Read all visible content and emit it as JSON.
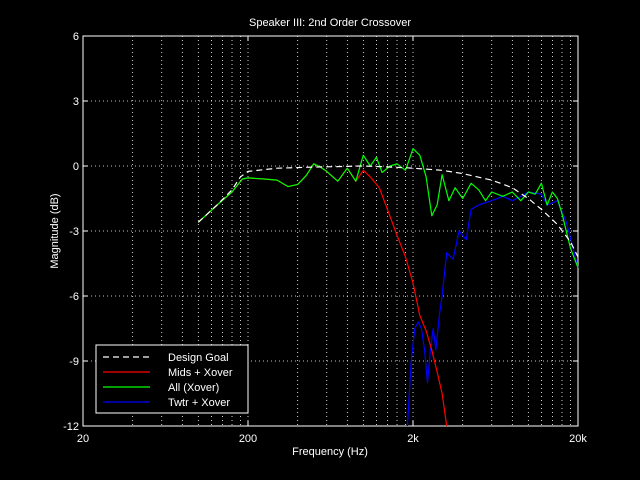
{
  "chart_data": {
    "type": "line",
    "title": "Speaker III: 2nd Order Crossover",
    "xlabel": "Frequency (Hz)",
    "ylabel": "Magnitude (dB)",
    "xscale": "log",
    "xlim": [
      20,
      20000
    ],
    "ylim": [
      -12,
      6
    ],
    "xticks": [
      20,
      200,
      2000,
      20000
    ],
    "xtick_labels": [
      "20",
      "200",
      "2k",
      "20k"
    ],
    "yticks": [
      -12,
      -9,
      -6,
      -3,
      0,
      3,
      6
    ],
    "ytick_labels": [
      "-12",
      "-9",
      "-6",
      "-3",
      "0",
      "3",
      "6"
    ],
    "grid": true,
    "grid_style": "dotted",
    "legend_position": "lower-left",
    "background": "#000000",
    "series": [
      {
        "name": "Design Goal",
        "color": "#ffffff",
        "dash": "dashed",
        "points": [
          [
            100,
            -2.6
          ],
          [
            130,
            -1.8
          ],
          [
            160,
            -1.1
          ],
          [
            180,
            -0.5
          ],
          [
            200,
            -0.25
          ],
          [
            300,
            -0.1
          ],
          [
            500,
            -0.05
          ],
          [
            1000,
            0
          ],
          [
            1500,
            -0.05
          ],
          [
            2000,
            -0.1
          ],
          [
            3000,
            -0.2
          ],
          [
            4000,
            -0.35
          ],
          [
            6000,
            -0.65
          ],
          [
            8000,
            -1.0
          ],
          [
            10000,
            -1.5
          ],
          [
            12000,
            -2.0
          ],
          [
            15000,
            -2.7
          ],
          [
            18000,
            -3.5
          ],
          [
            20000,
            -4.2
          ]
        ]
      },
      {
        "name": "Mids + Xover",
        "color": "#ff0000",
        "dash": "solid",
        "points": [
          [
            100,
            -2.6
          ],
          [
            130,
            -1.8
          ],
          [
            160,
            -1.2
          ],
          [
            185,
            -0.6
          ],
          [
            200,
            -0.55
          ],
          [
            250,
            -0.6
          ],
          [
            300,
            -0.65
          ],
          [
            350,
            -0.95
          ],
          [
            400,
            -0.85
          ],
          [
            450,
            -0.45
          ],
          [
            500,
            0.1
          ],
          [
            550,
            -0.05
          ],
          [
            600,
            -0.25
          ],
          [
            700,
            -0.7
          ],
          [
            800,
            -0.1
          ],
          [
            900,
            -0.7
          ],
          [
            1000,
            -0.2
          ],
          [
            1100,
            -0.5
          ],
          [
            1250,
            -1.0
          ],
          [
            1400,
            -2.0
          ],
          [
            1600,
            -3.2
          ],
          [
            1800,
            -4.2
          ],
          [
            2000,
            -5.4
          ],
          [
            2200,
            -6.9
          ],
          [
            2400,
            -7.6
          ],
          [
            2600,
            -8.5
          ],
          [
            2800,
            -9.5
          ],
          [
            3000,
            -10.5
          ],
          [
            3200,
            -12.0
          ]
        ]
      },
      {
        "name": "All (Xover)",
        "color": "#00ff00",
        "dash": "solid",
        "points": [
          [
            100,
            -2.6
          ],
          [
            130,
            -1.8
          ],
          [
            160,
            -1.2
          ],
          [
            185,
            -0.6
          ],
          [
            200,
            -0.55
          ],
          [
            250,
            -0.6
          ],
          [
            300,
            -0.65
          ],
          [
            350,
            -0.95
          ],
          [
            400,
            -0.85
          ],
          [
            450,
            -0.45
          ],
          [
            500,
            0.1
          ],
          [
            550,
            -0.05
          ],
          [
            600,
            -0.25
          ],
          [
            700,
            -0.7
          ],
          [
            800,
            -0.1
          ],
          [
            900,
            -0.7
          ],
          [
            1000,
            0.5
          ],
          [
            1100,
            0.0
          ],
          [
            1200,
            0.4
          ],
          [
            1300,
            -0.3
          ],
          [
            1450,
            0.0
          ],
          [
            1600,
            0.1
          ],
          [
            1800,
            -0.2
          ],
          [
            2000,
            0.8
          ],
          [
            2200,
            0.5
          ],
          [
            2400,
            -0.5
          ],
          [
            2600,
            -2.3
          ],
          [
            2800,
            -1.8
          ],
          [
            3000,
            -0.4
          ],
          [
            3300,
            -1.6
          ],
          [
            3600,
            -1.0
          ],
          [
            4000,
            -1.5
          ],
          [
            4500,
            -0.8
          ],
          [
            5000,
            -1.1
          ],
          [
            5500,
            -1.6
          ],
          [
            6000,
            -1.2
          ],
          [
            7000,
            -1.4
          ],
          [
            8000,
            -1.2
          ],
          [
            9000,
            -1.6
          ],
          [
            10000,
            -1.2
          ],
          [
            11000,
            -1.3
          ],
          [
            12000,
            -0.8
          ],
          [
            13000,
            -1.8
          ],
          [
            14000,
            -1.2
          ],
          [
            15000,
            -1.5
          ],
          [
            16000,
            -2.2
          ],
          [
            18000,
            -3.8
          ],
          [
            20000,
            -4.7
          ]
        ]
      },
      {
        "name": "Twtr + Xover",
        "color": "#0000ff",
        "dash": "solid",
        "points": [
          [
            1850,
            -12.0
          ],
          [
            1950,
            -9.0
          ],
          [
            2050,
            -7.5
          ],
          [
            2150,
            -7.2
          ],
          [
            2250,
            -7.5
          ],
          [
            2350,
            -8.5
          ],
          [
            2450,
            -10.0
          ],
          [
            2550,
            -8.5
          ],
          [
            2650,
            -7.5
          ],
          [
            2750,
            -8.5
          ],
          [
            2900,
            -6.8
          ],
          [
            3000,
            -6.0
          ],
          [
            3200,
            -4.0
          ],
          [
            3500,
            -4.3
          ],
          [
            3800,
            -3.0
          ],
          [
            4200,
            -3.4
          ],
          [
            4500,
            -2.0
          ],
          [
            5000,
            -1.8
          ],
          [
            6000,
            -1.6
          ],
          [
            7000,
            -1.4
          ],
          [
            8000,
            -1.6
          ],
          [
            9000,
            -1.4
          ],
          [
            10000,
            -1.2
          ],
          [
            12000,
            -1.3
          ],
          [
            13000,
            -1.8
          ],
          [
            15000,
            -1.6
          ],
          [
            17000,
            -2.6
          ],
          [
            20000,
            -4.7
          ]
        ]
      }
    ]
  }
}
